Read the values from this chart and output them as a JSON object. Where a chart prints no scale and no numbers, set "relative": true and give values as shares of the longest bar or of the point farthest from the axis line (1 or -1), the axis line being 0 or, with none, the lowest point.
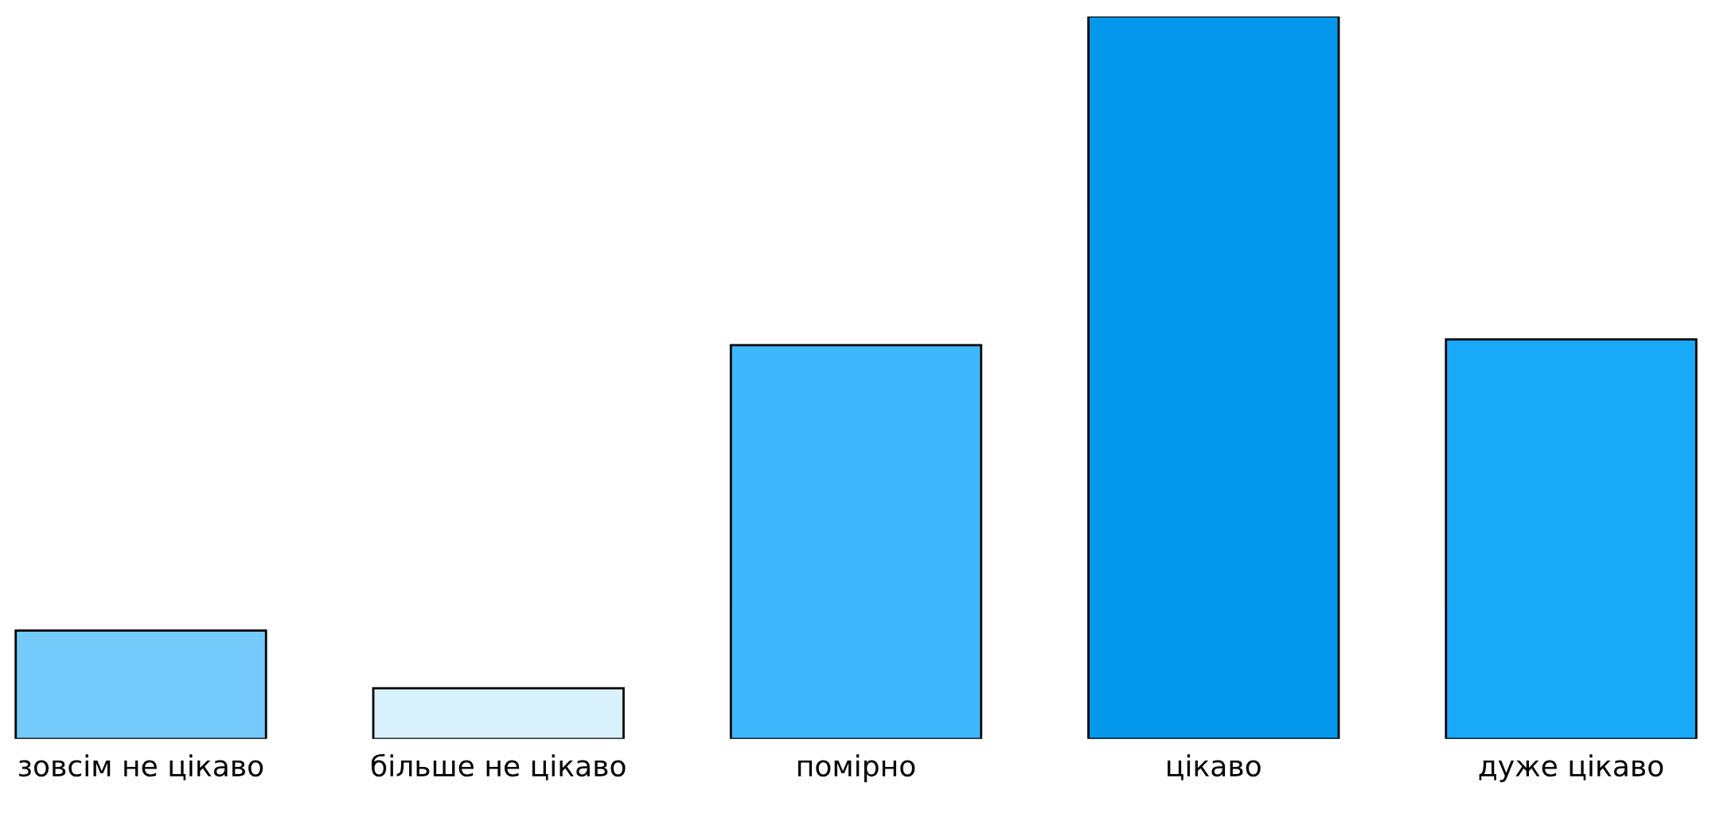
{
  "chart_data": {
    "type": "bar",
    "relative": true,
    "categories": [
      "зовсім не цікаво",
      "більше не цікаво",
      "помірно",
      "цікаво",
      "дуже цікаво"
    ],
    "values": [
      0.15,
      0.07,
      0.545,
      1,
      0.553
    ],
    "colors": [
      "#74cafb",
      "#d9f0fd",
      "#3fb7fd",
      "#0398eb",
      "#18a9f9"
    ],
    "grid": false,
    "legend": false
  }
}
